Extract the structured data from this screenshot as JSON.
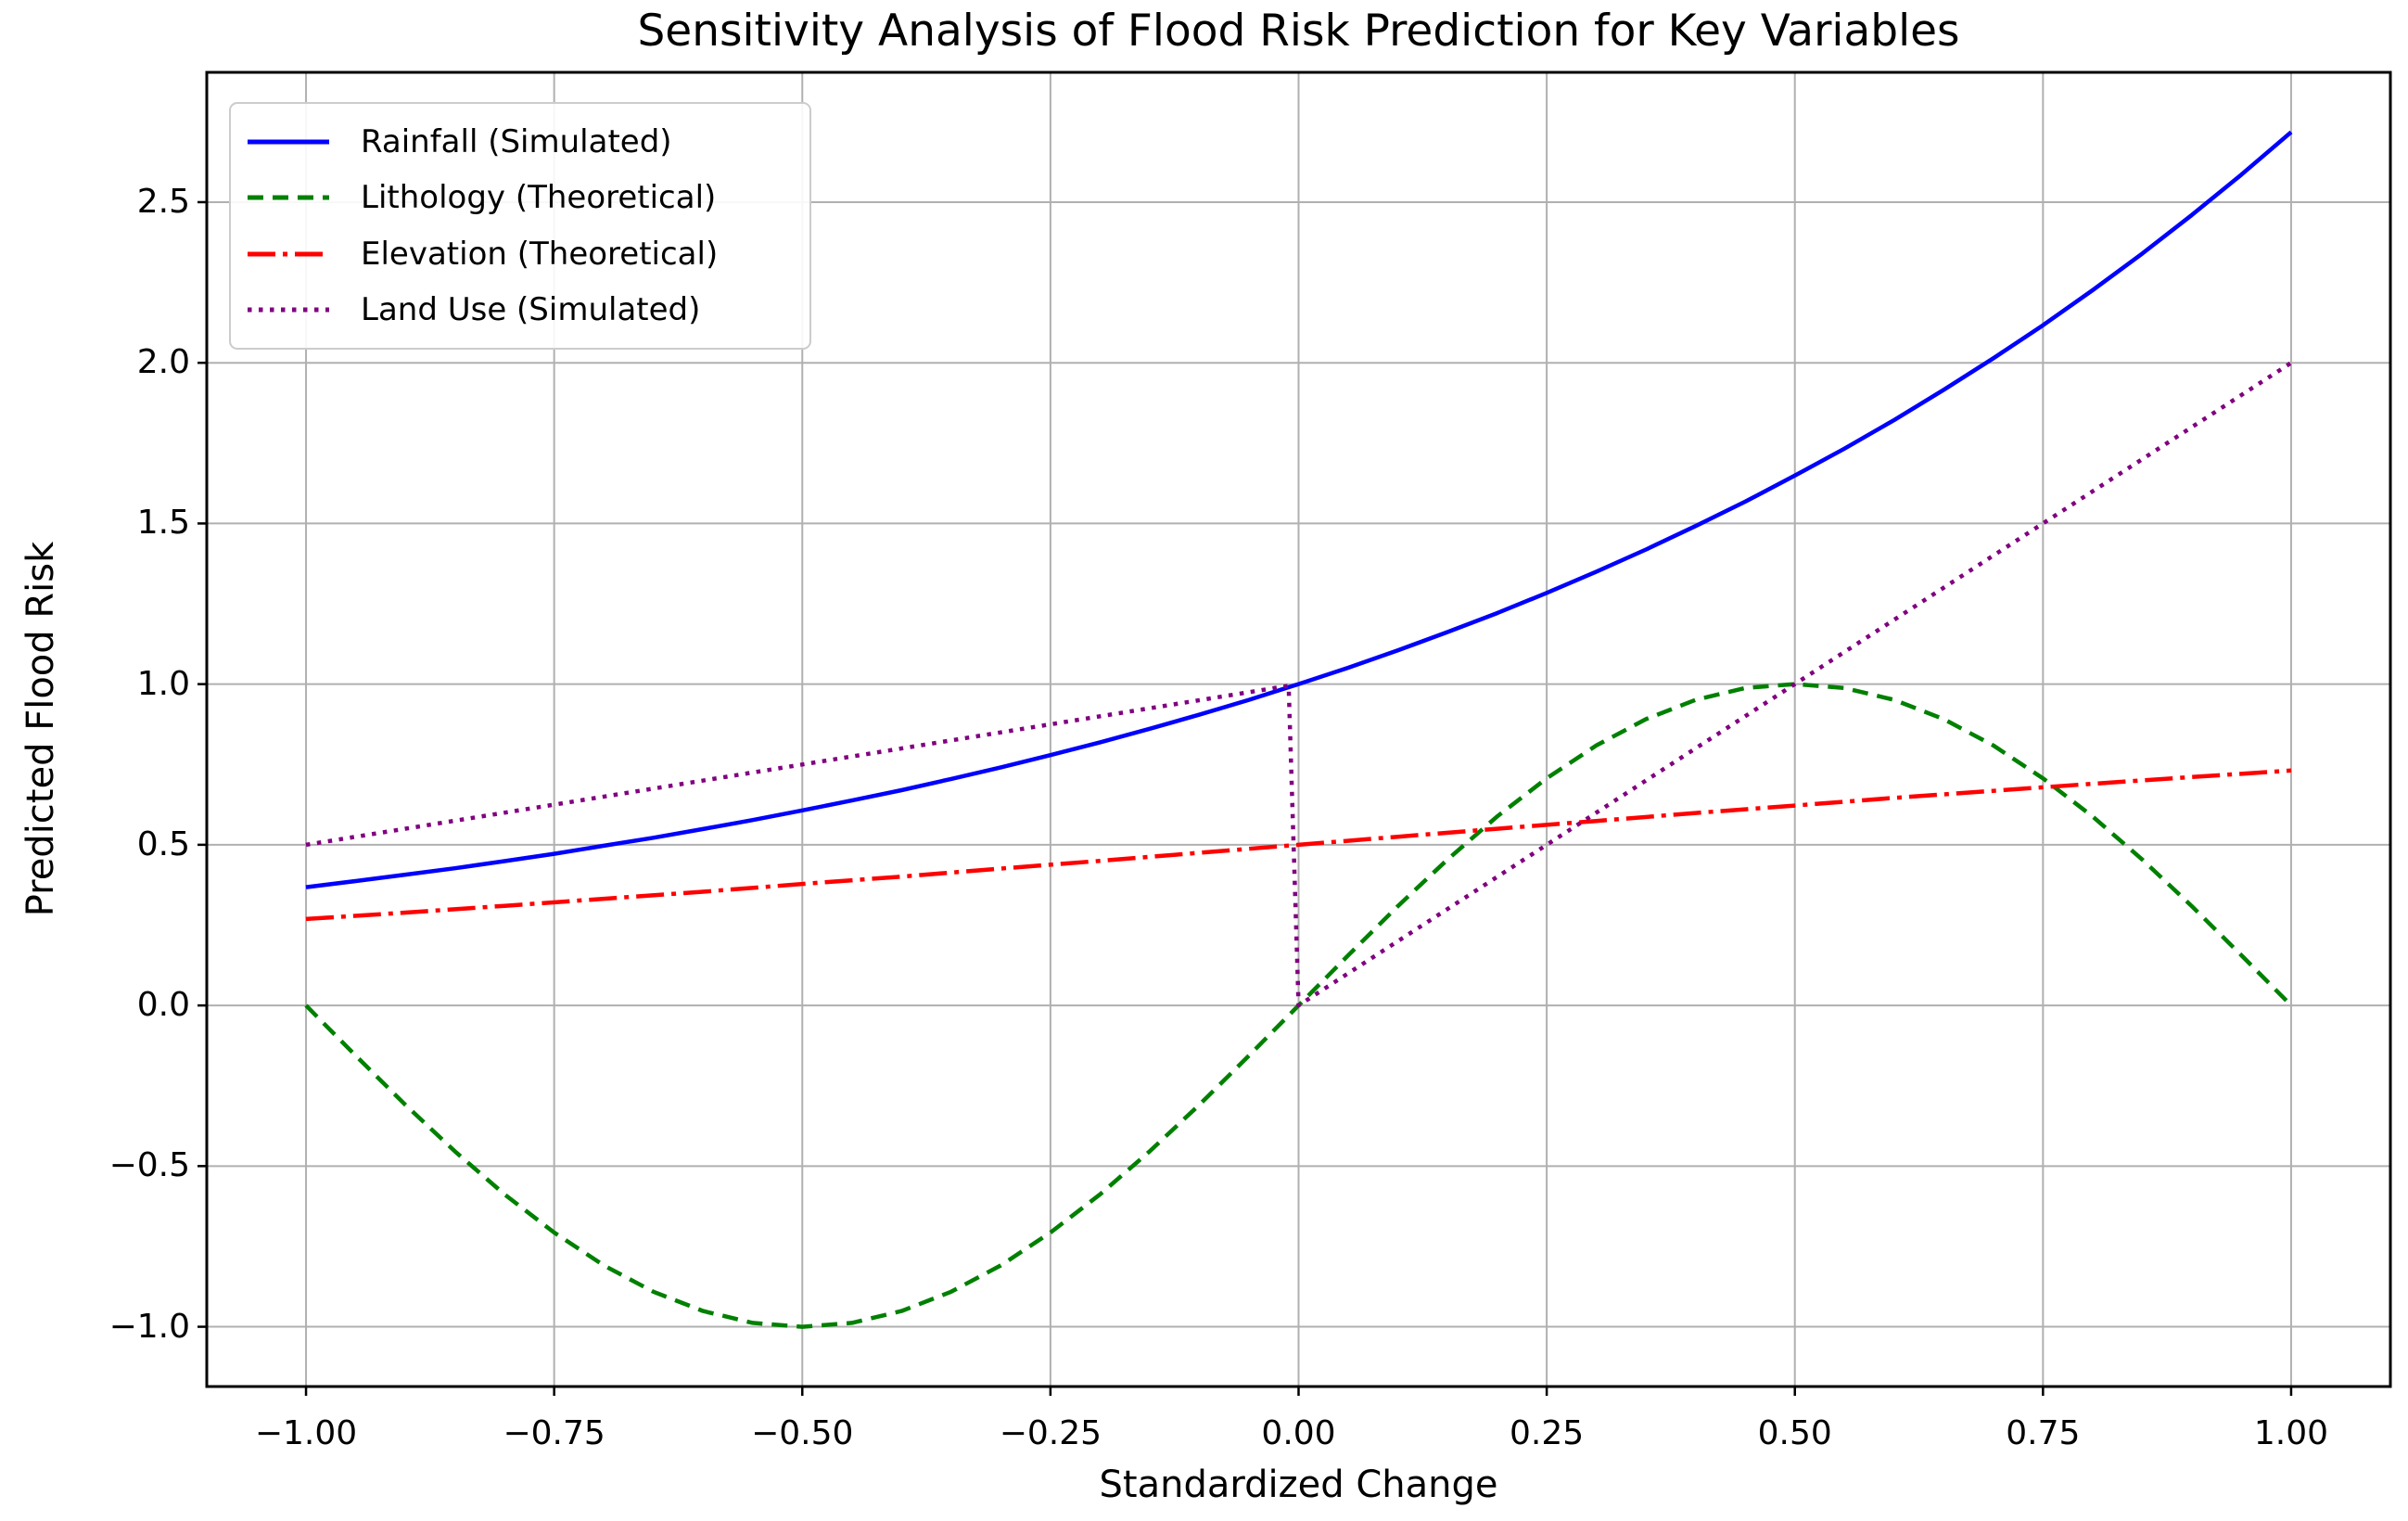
{
  "figure": {
    "background": "#ffffff"
  },
  "chart_data": {
    "type": "line",
    "title": "Sensitivity Analysis of Flood Risk Prediction for Key Variables",
    "xlabel": "Standardized Change",
    "ylabel": "Predicted Flood Risk",
    "xlim": [
      -1.1,
      1.1
    ],
    "ylim": [
      -1.186,
      2.904
    ],
    "grid": true,
    "grid_color": "#b0b0b0",
    "axis_color": "#000000",
    "text_color": "#000000",
    "x_ticks": [
      -1.0,
      -0.75,
      -0.5,
      -0.25,
      0.0,
      0.25,
      0.5,
      0.75,
      1.0
    ],
    "x_tick_labels": [
      "−1.00",
      "−0.75",
      "−0.50",
      "−0.25",
      "0.00",
      "0.25",
      "0.50",
      "0.75",
      "1.00"
    ],
    "y_ticks": [
      -1.0,
      -0.5,
      0.0,
      0.5,
      1.0,
      1.5,
      2.0,
      2.5
    ],
    "y_tick_labels": [
      "−1.0",
      "−0.5",
      "0.0",
      "0.5",
      "1.0",
      "1.5",
      "2.0",
      "2.5"
    ],
    "legend": {
      "position": "upper-left",
      "border_color": "#cccccc",
      "background": "#ffffff"
    },
    "series": [
      {
        "name": "Rainfall (Simulated)",
        "color": "#0000ff",
        "style": "solid",
        "points": [
          [
            -1,
            0.368
          ],
          [
            -0.95,
            0.387
          ],
          [
            -0.9,
            0.407
          ],
          [
            -0.85,
            0.427
          ],
          [
            -0.8,
            0.449
          ],
          [
            -0.75,
            0.472
          ],
          [
            -0.7,
            0.497
          ],
          [
            -0.65,
            0.522
          ],
          [
            -0.6,
            0.549
          ],
          [
            -0.55,
            0.577
          ],
          [
            -0.5,
            0.607
          ],
          [
            -0.45,
            0.638
          ],
          [
            -0.4,
            0.67
          ],
          [
            -0.35,
            0.705
          ],
          [
            -0.3,
            0.741
          ],
          [
            -0.25,
            0.779
          ],
          [
            -0.2,
            0.819
          ],
          [
            -0.15,
            0.861
          ],
          [
            -0.1,
            0.905
          ],
          [
            -0.05,
            0.951
          ],
          [
            0,
            1.0
          ],
          [
            0.05,
            1.051
          ],
          [
            0.1,
            1.105
          ],
          [
            0.15,
            1.162
          ],
          [
            0.2,
            1.221
          ],
          [
            0.25,
            1.284
          ],
          [
            0.3,
            1.35
          ],
          [
            0.35,
            1.419
          ],
          [
            0.4,
            1.492
          ],
          [
            0.45,
            1.568
          ],
          [
            0.5,
            1.649
          ],
          [
            0.55,
            1.733
          ],
          [
            0.6,
            1.822
          ],
          [
            0.65,
            1.916
          ],
          [
            0.7,
            2.014
          ],
          [
            0.75,
            2.117
          ],
          [
            0.8,
            2.226
          ],
          [
            0.85,
            2.34
          ],
          [
            0.9,
            2.46
          ],
          [
            0.95,
            2.586
          ],
          [
            1,
            2.718
          ]
        ]
      },
      {
        "name": "Lithology (Theoretical)",
        "color": "#008000",
        "style": "dashed",
        "points": [
          [
            -1,
            0
          ],
          [
            -0.95,
            -0.156
          ],
          [
            -0.9,
            -0.309
          ],
          [
            -0.85,
            -0.454
          ],
          [
            -0.8,
            -0.588
          ],
          [
            -0.75,
            -0.707
          ],
          [
            -0.7,
            -0.809
          ],
          [
            -0.65,
            -0.891
          ],
          [
            -0.6,
            -0.951
          ],
          [
            -0.55,
            -0.988
          ],
          [
            -0.5,
            -1.0
          ],
          [
            -0.45,
            -0.988
          ],
          [
            -0.4,
            -0.951
          ],
          [
            -0.35,
            -0.891
          ],
          [
            -0.3,
            -0.809
          ],
          [
            -0.25,
            -0.707
          ],
          [
            -0.2,
            -0.588
          ],
          [
            -0.15,
            -0.454
          ],
          [
            -0.1,
            -0.309
          ],
          [
            -0.05,
            -0.156
          ],
          [
            0,
            0
          ],
          [
            0.05,
            0.156
          ],
          [
            0.1,
            0.309
          ],
          [
            0.15,
            0.454
          ],
          [
            0.2,
            0.588
          ],
          [
            0.25,
            0.707
          ],
          [
            0.3,
            0.809
          ],
          [
            0.35,
            0.891
          ],
          [
            0.4,
            0.951
          ],
          [
            0.45,
            0.988
          ],
          [
            0.5,
            1.0
          ],
          [
            0.55,
            0.988
          ],
          [
            0.6,
            0.951
          ],
          [
            0.65,
            0.891
          ],
          [
            0.7,
            0.809
          ],
          [
            0.75,
            0.707
          ],
          [
            0.8,
            0.588
          ],
          [
            0.85,
            0.454
          ],
          [
            0.9,
            0.309
          ],
          [
            0.95,
            0.156
          ],
          [
            1,
            0
          ]
        ]
      },
      {
        "name": "Elevation (Theoretical)",
        "color": "#ff0000",
        "style": "dashdot",
        "points": [
          [
            -1,
            0.269
          ],
          [
            -0.9,
            0.289
          ],
          [
            -0.8,
            0.31
          ],
          [
            -0.7,
            0.332
          ],
          [
            -0.6,
            0.354
          ],
          [
            -0.5,
            0.378
          ],
          [
            -0.4,
            0.401
          ],
          [
            -0.3,
            0.426
          ],
          [
            -0.2,
            0.45
          ],
          [
            -0.1,
            0.475
          ],
          [
            0,
            0.5
          ],
          [
            0.1,
            0.525
          ],
          [
            0.2,
            0.55
          ],
          [
            0.3,
            0.574
          ],
          [
            0.4,
            0.599
          ],
          [
            0.5,
            0.622
          ],
          [
            0.6,
            0.646
          ],
          [
            0.7,
            0.668
          ],
          [
            0.8,
            0.69
          ],
          [
            0.9,
            0.711
          ],
          [
            1,
            0.731
          ]
        ]
      },
      {
        "name": "Land Use (Simulated)",
        "color": "#800080",
        "style": "dotted",
        "points": [
          [
            -1,
            0.5
          ],
          [
            -0.75,
            0.625
          ],
          [
            -0.5,
            0.75
          ],
          [
            -0.25,
            0.875
          ],
          [
            -0.01,
            0.995
          ],
          [
            0,
            0
          ],
          [
            0.25,
            0.5
          ],
          [
            0.5,
            1.0
          ],
          [
            0.75,
            1.5
          ],
          [
            1,
            2.0
          ]
        ]
      }
    ]
  }
}
